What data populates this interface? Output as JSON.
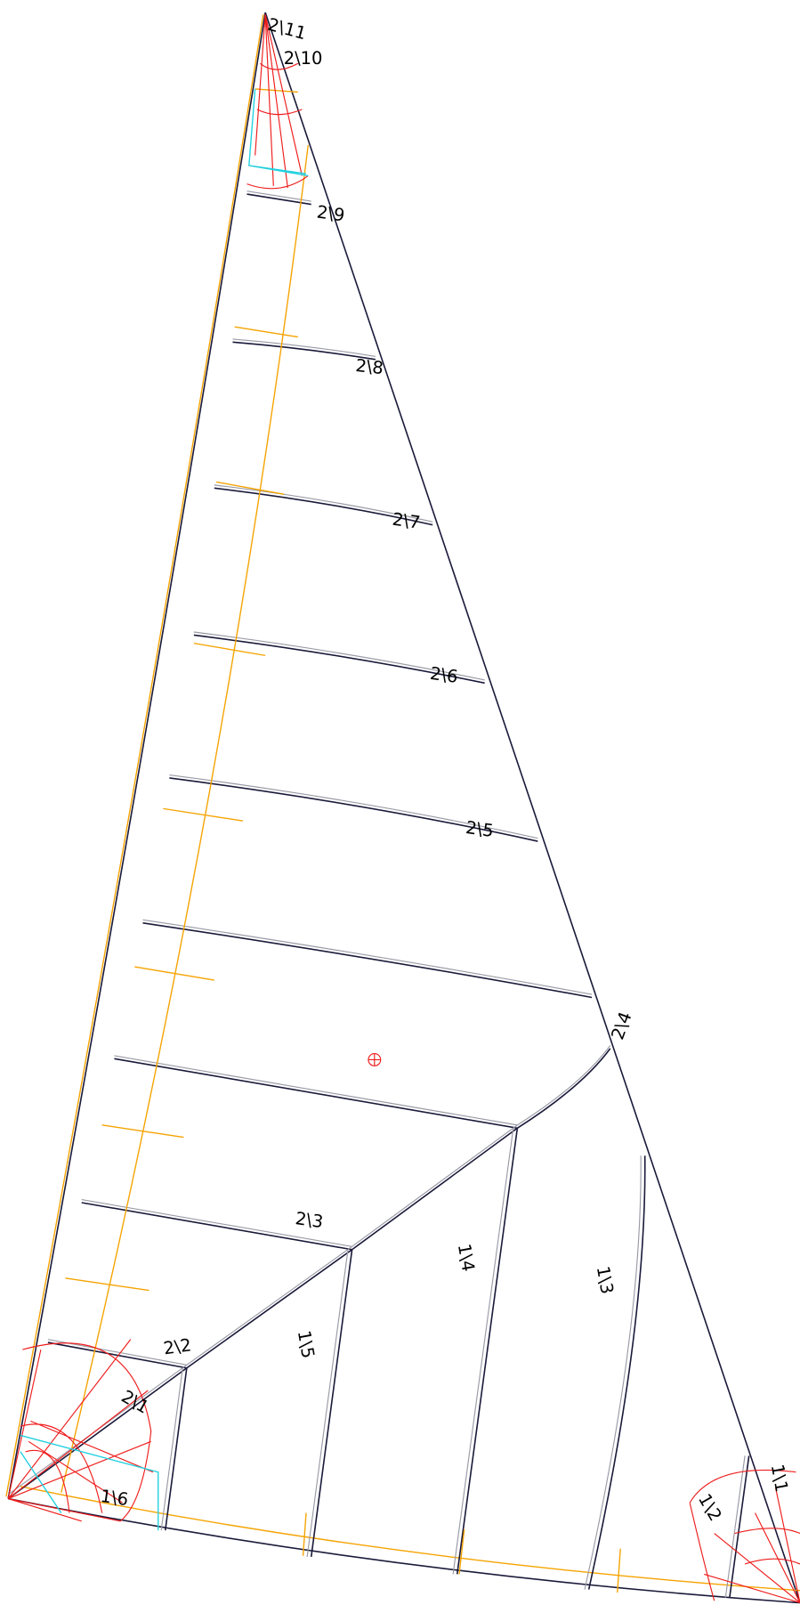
{
  "sail": {
    "panel_labels": [
      "2\\11",
      "2\\10",
      "2\\9",
      "2\\8",
      "2\\7",
      "2\\6",
      "2\\5",
      "2\\4",
      "2\\3",
      "2\\2",
      "2\\1",
      "1\\6",
      "1\\5",
      "1\\4",
      "1\\3",
      "1\\2",
      "1\\1"
    ]
  }
}
